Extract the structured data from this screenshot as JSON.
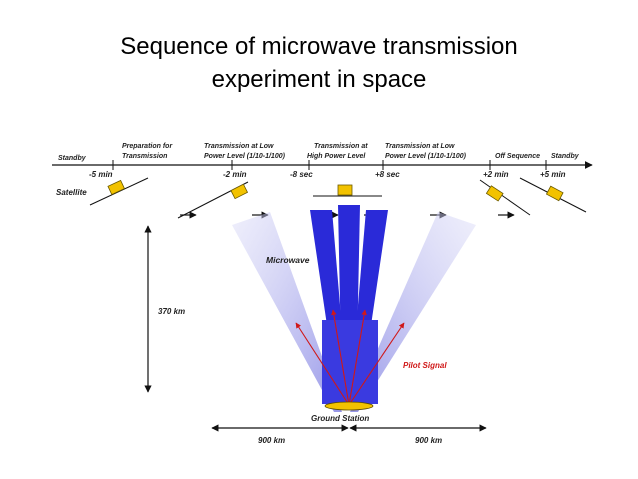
{
  "title_line1": "Sequence of microwave transmission",
  "title_line2": "experiment in space",
  "diagram": {
    "phases": {
      "standby_left": "Standby",
      "preparation_1": "Preparation for",
      "preparation_2": "Transmission",
      "low_power_left_1": "Transmission at Low",
      "low_power_left_2": "Power Level (1/10-1/100)",
      "high_power_1": "Transmission at",
      "high_power_2": "High Power Level",
      "low_power_right_1": "Transmission at Low",
      "low_power_right_2": "Power Level (1/10-1/100)",
      "off_sequence": "Off Sequence",
      "standby_right": "Standby"
    },
    "times": {
      "t_minus_5": "-5 min",
      "t_minus_2": "-2 min",
      "t_minus_8s": "-8 sec",
      "t_plus_8s": "+8 sec",
      "t_plus_2": "+2 min",
      "t_plus_5": "+5 min"
    },
    "satellite_label": "Satellite",
    "microwave_label": "Microwave",
    "altitude_label": "370 km",
    "pilot_signal_label": "Pilot Signal",
    "ground_station_label": "Ground Station",
    "distance_left": "900 km",
    "distance_right": "900 km",
    "colors": {
      "beam_high": "#2a2ad8",
      "beam_low": "#b4b4ec",
      "satellite": "#f2c200",
      "pilot_signal": "#d01818",
      "ground_station": "#f2c200"
    }
  }
}
